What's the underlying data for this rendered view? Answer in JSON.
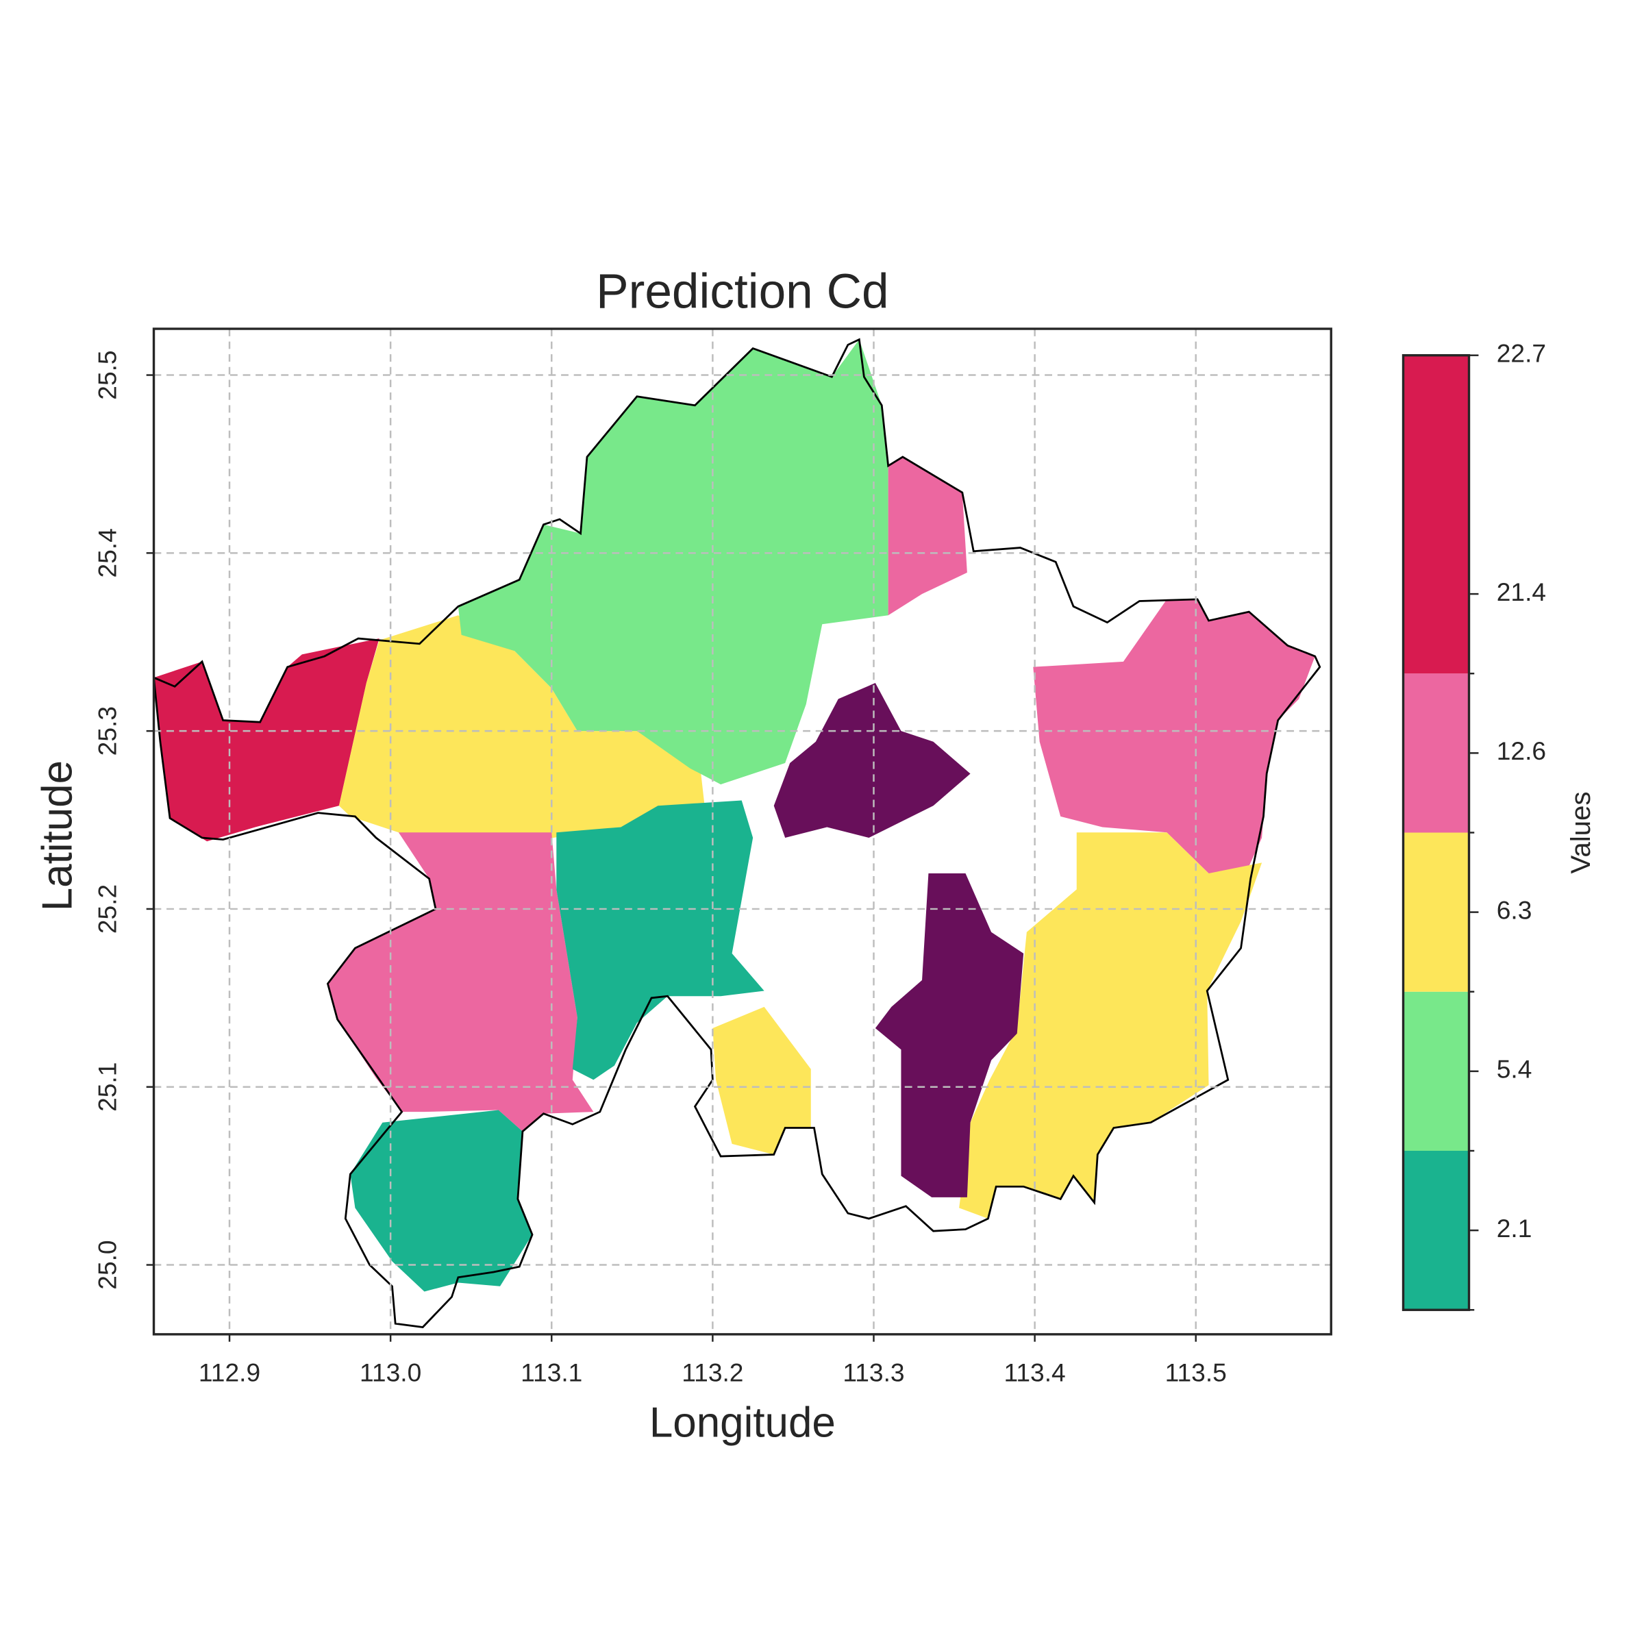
{
  "chart_data": {
    "type": "map",
    "title": "Prediction Cd",
    "x_label": "Longitude",
    "y_label": "Latitude",
    "xlim": [
      112.853,
      113.584
    ],
    "ylim": [
      24.961,
      25.526
    ],
    "xticks": [
      112.9,
      {
        "value": 113,
        "label": "113.0"
      },
      113.1,
      113.2,
      113.3,
      113.4,
      113.5
    ],
    "yticks": [
      {
        "value": 25,
        "label": "25.0"
      },
      25.1,
      25.2,
      25.3,
      25.4,
      25.5
    ],
    "grid": true,
    "boundary_color": "#000000",
    "boundary": [
      [
        112.853,
        25.33
      ],
      [
        112.866,
        25.325
      ],
      [
        112.883,
        25.339
      ],
      [
        112.896,
        25.306
      ],
      [
        112.919,
        25.305
      ],
      [
        112.936,
        25.336
      ],
      [
        112.959,
        25.342
      ],
      [
        112.98,
        25.352
      ],
      [
        113.018,
        25.349
      ],
      [
        113.042,
        25.37
      ],
      [
        113.08,
        25.385
      ],
      [
        113.095,
        25.416
      ],
      [
        113.105,
        25.419
      ],
      [
        113.118,
        25.411
      ],
      [
        113.122,
        25.454
      ],
      [
        113.153,
        25.488
      ],
      [
        113.189,
        25.483
      ],
      [
        113.225,
        25.515
      ],
      [
        113.274,
        25.499
      ],
      [
        113.284,
        25.517
      ],
      [
        113.291,
        25.52
      ],
      [
        113.294,
        25.499
      ],
      [
        113.305,
        25.483
      ],
      [
        113.309,
        25.449
      ],
      [
        113.318,
        25.454
      ],
      [
        113.355,
        25.434
      ],
      [
        113.362,
        25.401
      ],
      [
        113.391,
        25.403
      ],
      [
        113.413,
        25.395
      ],
      [
        113.424,
        25.37
      ],
      [
        113.445,
        25.361
      ],
      [
        113.465,
        25.373
      ],
      [
        113.501,
        25.374
      ],
      [
        113.508,
        25.362
      ],
      [
        113.533,
        25.367
      ],
      [
        113.557,
        25.348
      ],
      [
        113.574,
        25.342
      ],
      [
        113.577,
        25.336
      ],
      [
        113.551,
        25.306
      ],
      [
        113.544,
        25.276
      ],
      [
        113.542,
        25.252
      ],
      [
        113.534,
        25.217
      ],
      [
        113.528,
        25.178
      ],
      [
        113.507,
        25.154
      ],
      [
        113.52,
        25.104
      ],
      [
        113.472,
        25.08
      ],
      [
        113.449,
        25.077
      ],
      [
        113.439,
        25.062
      ],
      [
        113.437,
        25.035
      ],
      [
        113.424,
        25.05
      ],
      [
        113.416,
        25.037
      ],
      [
        113.393,
        25.044
      ],
      [
        113.376,
        25.044
      ],
      [
        113.371,
        25.026
      ],
      [
        113.357,
        25.02
      ],
      [
        113.337,
        25.019
      ],
      [
        113.32,
        25.033
      ],
      [
        113.297,
        25.026
      ],
      [
        113.284,
        25.029
      ],
      [
        113.268,
        25.051
      ],
      [
        113.263,
        25.077
      ],
      [
        113.245,
        25.077
      ],
      [
        113.238,
        25.062
      ],
      [
        113.205,
        25.061
      ],
      [
        113.189,
        25.089
      ],
      [
        113.2,
        25.104
      ],
      [
        113.199,
        25.121
      ],
      [
        113.172,
        25.151
      ],
      [
        113.162,
        25.15
      ],
      [
        113.146,
        25.121
      ],
      [
        113.13,
        25.086
      ],
      [
        113.113,
        25.079
      ],
      [
        113.095,
        25.085
      ],
      [
        113.082,
        25.075
      ],
      [
        113.079,
        25.037
      ],
      [
        113.088,
        25.017
      ],
      [
        113.08,
        24.999
      ],
      [
        113.064,
        24.996
      ],
      [
        113.042,
        24.993
      ],
      [
        113.038,
        24.982
      ],
      [
        113.02,
        24.965
      ],
      [
        113.003,
        24.967
      ],
      [
        113.001,
        24.988
      ],
      [
        112.987,
        25.0
      ],
      [
        112.972,
        25.026
      ],
      [
        112.975,
        25.051
      ],
      [
        113.007,
        25.086
      ],
      [
        112.967,
        25.138
      ],
      [
        112.961,
        25.158
      ],
      [
        112.978,
        25.178
      ],
      [
        113.028,
        25.2
      ],
      [
        113.024,
        25.217
      ],
      [
        112.991,
        25.24
      ],
      [
        112.978,
        25.252
      ],
      [
        112.955,
        25.254
      ],
      [
        112.896,
        25.239
      ],
      [
        112.883,
        25.24
      ],
      [
        112.863,
        25.251
      ],
      [
        112.857,
        25.294
      ]
    ],
    "zones": [
      {
        "color": "#d81b50",
        "polygon": [
          [
            112.853,
            25.33
          ],
          [
            112.883,
            25.339
          ],
          [
            112.896,
            25.306
          ],
          [
            112.919,
            25.305
          ],
          [
            112.936,
            25.336
          ],
          [
            112.945,
            25.343
          ],
          [
            112.993,
            25.352
          ],
          [
            112.985,
            25.327
          ],
          [
            112.968,
            25.258
          ],
          [
            112.916,
            25.246
          ],
          [
            112.886,
            25.238
          ],
          [
            112.863,
            25.251
          ],
          [
            112.857,
            25.294
          ]
        ]
      },
      {
        "color": "#fde65a",
        "polygon": [
          [
            112.993,
            25.351
          ],
          [
            113.042,
            25.365
          ],
          [
            113.077,
            25.345
          ],
          [
            113.1,
            25.324
          ],
          [
            113.116,
            25.3
          ],
          [
            113.153,
            25.3
          ],
          [
            113.192,
            25.282
          ],
          [
            113.195,
            25.258
          ],
          [
            113.143,
            25.246
          ],
          [
            113.087,
            25.238
          ],
          [
            113.005,
            25.243
          ],
          [
            112.975,
            25.252
          ],
          [
            112.968,
            25.258
          ],
          [
            112.985,
            25.327
          ]
        ]
      },
      {
        "color": "#78e88a",
        "polygon": [
          [
            113.042,
            25.37
          ],
          [
            113.08,
            25.385
          ],
          [
            113.095,
            25.416
          ],
          [
            113.118,
            25.411
          ],
          [
            113.122,
            25.454
          ],
          [
            113.153,
            25.488
          ],
          [
            113.189,
            25.483
          ],
          [
            113.225,
            25.515
          ],
          [
            113.274,
            25.499
          ],
          [
            113.291,
            25.52
          ],
          [
            113.305,
            25.483
          ],
          [
            113.309,
            25.449
          ],
          [
            113.309,
            25.365
          ],
          [
            113.268,
            25.36
          ],
          [
            113.258,
            25.315
          ],
          [
            113.245,
            25.282
          ],
          [
            113.205,
            25.27
          ],
          [
            113.186,
            25.279
          ],
          [
            113.153,
            25.3
          ],
          [
            113.116,
            25.3
          ],
          [
            113.1,
            25.324
          ],
          [
            113.077,
            25.345
          ],
          [
            113.044,
            25.354
          ]
        ]
      },
      {
        "color": "#ec67a0",
        "polygon": [
          [
            113.309,
            25.449
          ],
          [
            113.318,
            25.454
          ],
          [
            113.355,
            25.434
          ],
          [
            113.358,
            25.389
          ],
          [
            113.33,
            25.377
          ],
          [
            113.309,
            25.365
          ]
        ]
      },
      {
        "color": "#ec67a0",
        "polygon": [
          [
            113.482,
            25.374
          ],
          [
            113.501,
            25.374
          ],
          [
            113.508,
            25.362
          ],
          [
            113.533,
            25.367
          ],
          [
            113.557,
            25.348
          ],
          [
            113.574,
            25.342
          ],
          [
            113.564,
            25.318
          ],
          [
            113.551,
            25.306
          ],
          [
            113.544,
            25.276
          ],
          [
            113.541,
            25.24
          ],
          [
            113.531,
            25.22
          ],
          [
            113.508,
            25.22
          ],
          [
            113.482,
            25.243
          ],
          [
            113.442,
            25.246
          ],
          [
            113.416,
            25.252
          ],
          [
            113.403,
            25.294
          ],
          [
            113.399,
            25.336
          ],
          [
            113.455,
            25.339
          ]
        ]
      },
      {
        "color": "#ec67a0",
        "polygon": [
          [
            113.005,
            25.243
          ],
          [
            113.1,
            25.243
          ],
          [
            113.103,
            25.211
          ],
          [
            113.116,
            25.139
          ],
          [
            113.113,
            25.104
          ],
          [
            113.126,
            25.086
          ],
          [
            113.095,
            25.085
          ],
          [
            113.082,
            25.075
          ],
          [
            113.067,
            25.087
          ],
          [
            113.021,
            25.086
          ],
          [
            113.007,
            25.086
          ],
          [
            112.991,
            25.105
          ],
          [
            112.967,
            25.138
          ],
          [
            112.961,
            25.158
          ],
          [
            112.978,
            25.178
          ],
          [
            113.028,
            25.2
          ],
          [
            113.024,
            25.217
          ]
        ]
      },
      {
        "color": "#1ab38f",
        "polygon": [
          [
            112.995,
            25.08
          ],
          [
            113.067,
            25.087
          ],
          [
            113.082,
            25.075
          ],
          [
            113.079,
            25.037
          ],
          [
            113.088,
            25.017
          ],
          [
            113.068,
            24.988
          ],
          [
            113.042,
            24.99
          ],
          [
            113.021,
            24.985
          ],
          [
            113.001,
            25.002
          ],
          [
            112.978,
            25.032
          ],
          [
            112.975,
            25.051
          ]
        ]
      },
      {
        "color": "#1ab38f",
        "polygon": [
          [
            113.103,
            25.243
          ],
          [
            113.143,
            25.246
          ],
          [
            113.166,
            25.258
          ],
          [
            113.218,
            25.261
          ],
          [
            113.225,
            25.24
          ],
          [
            113.212,
            25.175
          ],
          [
            113.232,
            25.154
          ],
          [
            113.205,
            25.151
          ],
          [
            113.172,
            25.151
          ],
          [
            113.153,
            25.136
          ],
          [
            113.139,
            25.112
          ],
          [
            113.126,
            25.104
          ],
          [
            113.113,
            25.11
          ],
          [
            113.116,
            25.139
          ],
          [
            113.103,
            25.211
          ]
        ]
      },
      {
        "color": "#fde65a",
        "polygon": [
          [
            113.426,
            25.243
          ],
          [
            113.482,
            25.243
          ],
          [
            113.508,
            25.22
          ],
          [
            113.541,
            25.226
          ],
          [
            113.528,
            25.193
          ],
          [
            113.507,
            25.154
          ],
          [
            113.508,
            25.101
          ],
          [
            113.472,
            25.08
          ],
          [
            113.449,
            25.077
          ],
          [
            113.439,
            25.062
          ],
          [
            113.437,
            25.035
          ],
          [
            113.424,
            25.05
          ],
          [
            113.416,
            25.037
          ],
          [
            113.393,
            25.044
          ],
          [
            113.376,
            25.044
          ],
          [
            113.371,
            25.026
          ],
          [
            113.353,
            25.032
          ],
          [
            113.36,
            25.08
          ],
          [
            113.372,
            25.104
          ],
          [
            113.389,
            25.133
          ],
          [
            113.395,
            25.187
          ],
          [
            113.426,
            25.211
          ]
        ]
      },
      {
        "color": "#fde65a",
        "polygon": [
          [
            113.2,
            25.133
          ],
          [
            113.232,
            25.145
          ],
          [
            113.261,
            25.11
          ],
          [
            113.261,
            25.077
          ],
          [
            113.245,
            25.077
          ],
          [
            113.238,
            25.062
          ],
          [
            113.212,
            25.068
          ],
          [
            113.202,
            25.104
          ]
        ]
      },
      {
        "color": "#680f5a",
        "polygon": [
          [
            113.334,
            25.22
          ],
          [
            113.357,
            25.22
          ],
          [
            113.373,
            25.187
          ],
          [
            113.393,
            25.175
          ],
          [
            113.389,
            25.13
          ],
          [
            113.373,
            25.115
          ],
          [
            113.36,
            25.08
          ],
          [
            113.358,
            25.038
          ],
          [
            113.336,
            25.038
          ],
          [
            113.317,
            25.05
          ],
          [
            113.317,
            25.121
          ],
          [
            113.301,
            25.133
          ],
          [
            113.311,
            25.145
          ],
          [
            113.33,
            25.16
          ]
        ]
      },
      {
        "color": "#680f5a",
        "polygon": [
          [
            113.278,
            25.318
          ],
          [
            113.301,
            25.327
          ],
          [
            113.317,
            25.3
          ],
          [
            113.337,
            25.294
          ],
          [
            113.36,
            25.276
          ],
          [
            113.337,
            25.258
          ],
          [
            113.317,
            25.249
          ],
          [
            113.297,
            25.24
          ],
          [
            113.271,
            25.246
          ],
          [
            113.245,
            25.24
          ],
          [
            113.238,
            25.258
          ],
          [
            113.248,
            25.282
          ],
          [
            113.264,
            25.294
          ]
        ]
      }
    ],
    "colorbar": {
      "label": "Values",
      "colors": [
        "#1ab38f",
        "#78e88a",
        "#fde65a",
        "#ec67a0",
        "#d81b50"
      ],
      "ticks": [
        2.1,
        5.4,
        6.3,
        12.6,
        21.4,
        22.7
      ]
    }
  }
}
